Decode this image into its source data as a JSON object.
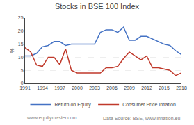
{
  "chart_data": {
    "type": "line",
    "title": "Stocks in BSE 100 Index",
    "ylabel": "%",
    "x": [
      1991,
      1992,
      1993,
      1994,
      1995,
      1996,
      1997,
      1998,
      1999,
      2000,
      2001,
      2002,
      2003,
      2004,
      2005,
      2006,
      2007,
      2008,
      2009,
      2010,
      2011,
      2012,
      2013,
      2014,
      2015,
      2016,
      2017,
      2018
    ],
    "series": [
      {
        "name": "Return on Equity",
        "color": "#4472C4",
        "values": [
          10.5,
          10.5,
          11.5,
          14.0,
          14.5,
          16.0,
          16.0,
          14.5,
          15.0,
          15.0,
          15.0,
          15.2,
          15.0,
          19.5,
          20.5,
          20.5,
          19.5,
          21.5,
          16.5,
          16.5,
          18.0,
          18.0,
          17.0,
          16.0,
          15.0,
          14.5,
          12.5,
          11.0
        ]
      },
      {
        "name": "Consumer Price Inflation",
        "color": "#C0392B",
        "values": [
          13.7,
          12.0,
          7.0,
          6.5,
          10.0,
          10.0,
          7.2,
          13.2,
          5.0,
          4.0,
          4.0,
          4.0,
          4.0,
          4.0,
          6.0,
          6.0,
          6.5,
          9.5,
          12.0,
          10.5,
          9.0,
          10.5,
          6.0,
          6.0,
          5.5,
          5.0,
          3.0,
          4.0
        ]
      }
    ],
    "xlim": [
      1991,
      2018
    ],
    "xticks": [
      1991,
      1994,
      1997,
      2000,
      2003,
      2006,
      2009,
      2012,
      2015,
      2018
    ],
    "ylim": [
      0,
      25
    ],
    "yticks": [
      0,
      5,
      10,
      15,
      20,
      25
    ],
    "grid": true,
    "legend": "bottom",
    "annotations": [
      "www.equitymaster.com",
      "Data Source: BSE, www.inflation.eu"
    ]
  }
}
